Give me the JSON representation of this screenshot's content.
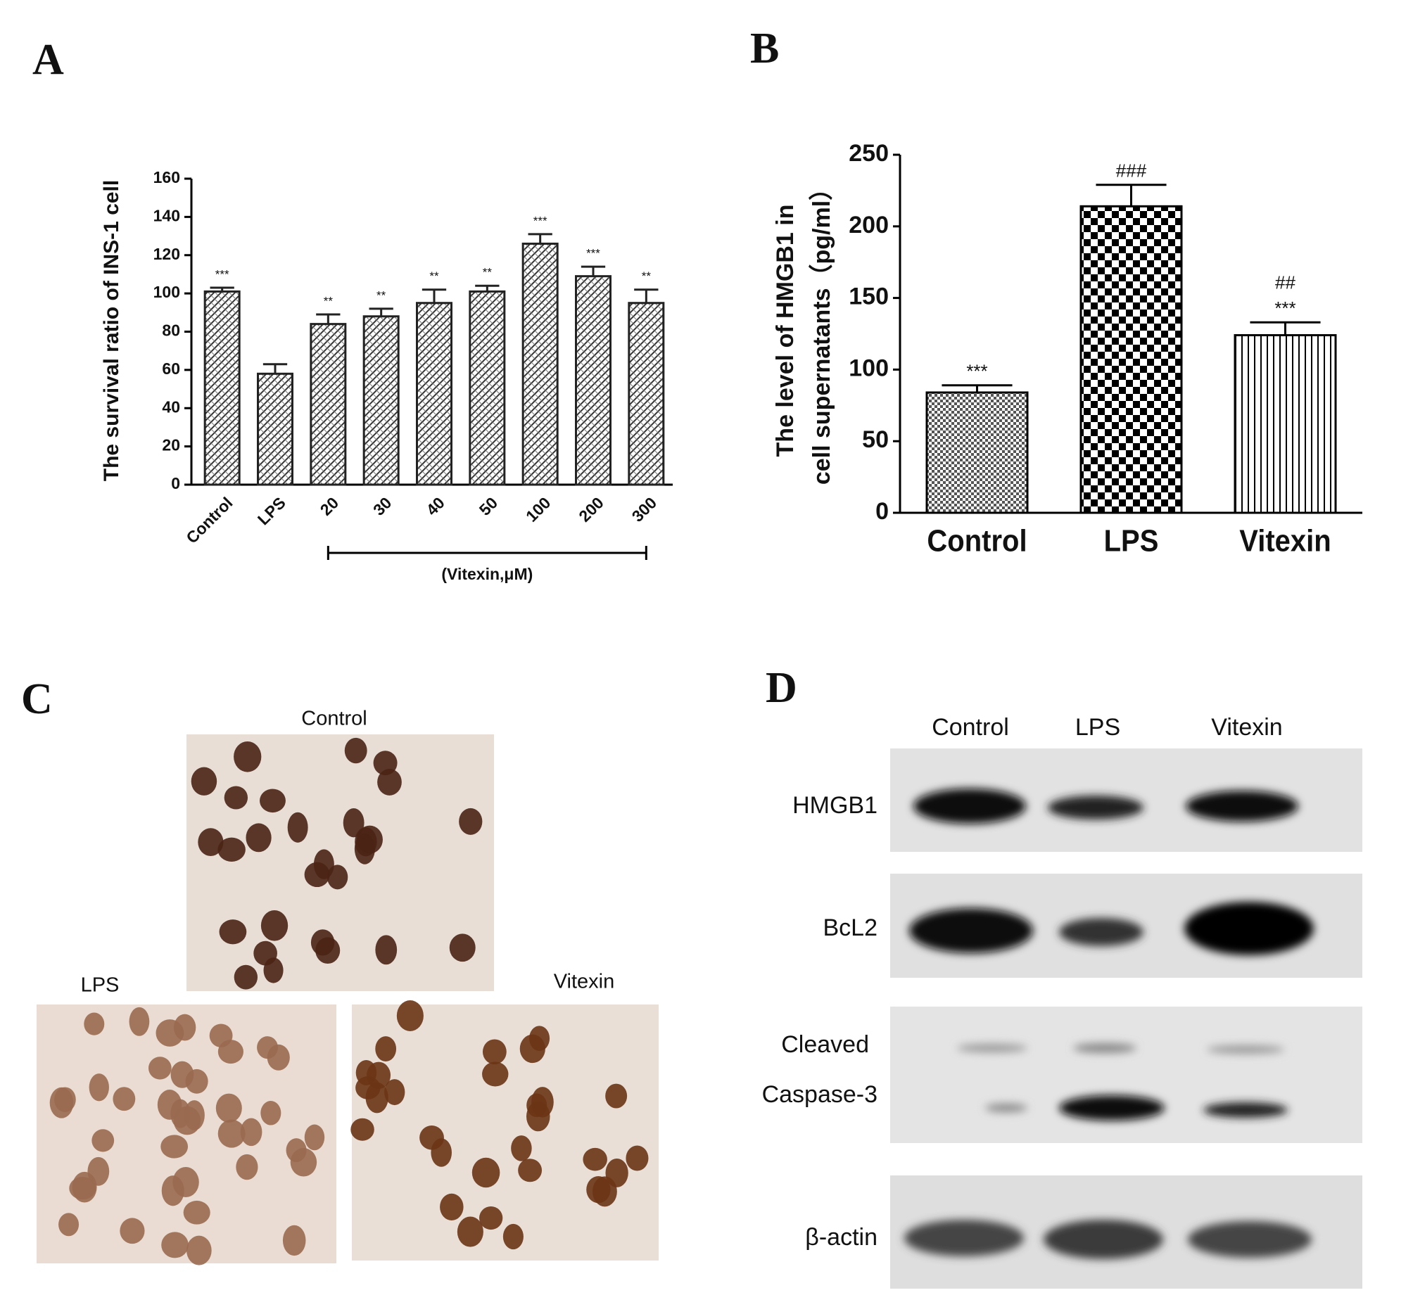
{
  "chart_data": [
    {
      "type": "bar",
      "panel": "A",
      "ylabel": "The survival ratio of  INS-1 cell",
      "categories": [
        "Control",
        "LPS",
        "20",
        "30",
        "40",
        "50",
        "100",
        "200",
        "300"
      ],
      "values": [
        101,
        58,
        84,
        88,
        95,
        101,
        126,
        109,
        95
      ],
      "errors": [
        2,
        5,
        5,
        4,
        7,
        3,
        5,
        5,
        7
      ],
      "annotations": [
        [
          "***"
        ],
        null,
        [
          "**"
        ],
        [
          "**"
        ],
        [
          "**"
        ],
        [
          "**"
        ],
        [
          "***"
        ],
        [
          "***"
        ],
        [
          "**"
        ]
      ],
      "bracket_label": "(Vitexin,μM)",
      "color": "#222222",
      "ylim": [
        0,
        160
      ],
      "yticks": [
        0,
        20,
        40,
        60,
        80,
        100,
        120,
        140,
        160
      ]
    },
    {
      "type": "bar",
      "panel": "B",
      "ylabel": [
        "The level of  HMGB1 in",
        "cell supernatants（pg/ml）"
      ],
      "categories": [
        "Control",
        "LPS",
        "Vitexin"
      ],
      "values": [
        84,
        214,
        124
      ],
      "errors": [
        5,
        15,
        9
      ],
      "annotations": [
        [
          "***"
        ],
        [
          "###"
        ],
        [
          "##",
          "***"
        ]
      ],
      "color": "#000000",
      "ylim": [
        0,
        250
      ],
      "yticks": [
        0,
        50,
        100,
        150,
        200,
        250
      ]
    }
  ],
  "panel_c": {
    "label": "C",
    "images": [
      {
        "label": "Control"
      },
      {
        "label": "LPS"
      },
      {
        "label": "Vitexin"
      }
    ]
  },
  "panel_d": {
    "label": "D",
    "lanes": [
      "Control",
      "LPS",
      "Vitexin"
    ],
    "rows": [
      "HMGB1",
      "BcL2",
      "Cleaved",
      "Caspase-3",
      "β-actin"
    ]
  }
}
